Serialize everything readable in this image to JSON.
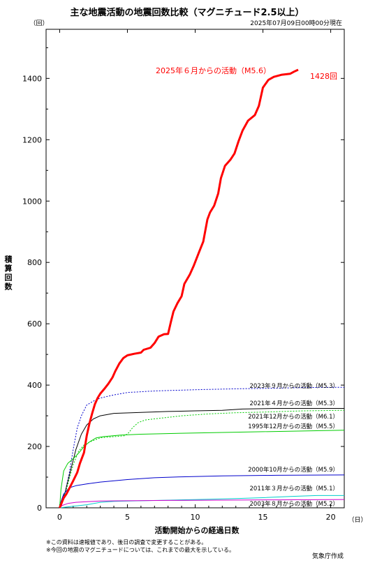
{
  "chart_data": {
    "type": "line",
    "title": "主な地震活動の地震回数比較（マグニチュード2.5以上）",
    "subtitle": "2025年07月09日00時00分現在",
    "xlabel": "活動開始からの経過日数",
    "x_unit": "（日）",
    "ylabel": "積算回数",
    "y_unit": "（回）",
    "xlim": [
      -1,
      21
    ],
    "ylim": [
      0,
      1560
    ],
    "x_ticks": [
      0,
      5,
      10,
      15,
      20
    ],
    "y_ticks": [
      0,
      200,
      400,
      600,
      800,
      1000,
      1200,
      1400
    ],
    "grid": false,
    "series": [
      {
        "name": "2025年６月からの活動（M5.6）",
        "color": "#ff0000",
        "style": "solid",
        "width": 3,
        "end_label": "1428回",
        "points": [
          [
            0,
            0
          ],
          [
            0.1,
            10
          ],
          [
            0.2,
            22
          ],
          [
            0.3,
            32
          ],
          [
            0.5,
            45
          ],
          [
            0.7,
            62
          ],
          [
            1.0,
            88
          ],
          [
            1.3,
            115
          ],
          [
            1.5,
            145
          ],
          [
            1.8,
            180
          ],
          [
            2.0,
            235
          ],
          [
            2.2,
            275
          ],
          [
            2.4,
            308
          ],
          [
            2.6,
            338
          ],
          [
            2.8,
            358
          ],
          [
            3.0,
            372
          ],
          [
            3.3,
            388
          ],
          [
            3.6,
            405
          ],
          [
            3.9,
            425
          ],
          [
            4.1,
            445
          ],
          [
            4.4,
            470
          ],
          [
            4.7,
            488
          ],
          [
            5.0,
            497
          ],
          [
            5.5,
            502
          ],
          [
            6.0,
            506
          ],
          [
            6.2,
            515
          ],
          [
            6.7,
            522
          ],
          [
            7.0,
            537
          ],
          [
            7.3,
            558
          ],
          [
            7.7,
            566
          ],
          [
            8.0,
            567
          ],
          [
            8.2,
            605
          ],
          [
            8.4,
            640
          ],
          [
            8.7,
            668
          ],
          [
            9.0,
            690
          ],
          [
            9.2,
            730
          ],
          [
            9.6,
            760
          ],
          [
            9.9,
            790
          ],
          [
            10.3,
            835
          ],
          [
            10.6,
            868
          ],
          [
            10.9,
            940
          ],
          [
            11.1,
            963
          ],
          [
            11.4,
            985
          ],
          [
            11.7,
            1025
          ],
          [
            11.9,
            1075
          ],
          [
            12.2,
            1115
          ],
          [
            12.6,
            1135
          ],
          [
            12.9,
            1155
          ],
          [
            13.2,
            1195
          ],
          [
            13.5,
            1230
          ],
          [
            13.9,
            1262
          ],
          [
            14.4,
            1280
          ],
          [
            14.7,
            1310
          ],
          [
            15.0,
            1370
          ],
          [
            15.4,
            1395
          ],
          [
            15.8,
            1405
          ],
          [
            16.4,
            1412
          ],
          [
            17.0,
            1415
          ],
          [
            17.3,
            1422
          ],
          [
            17.6,
            1428
          ]
        ]
      },
      {
        "name": "2023年９月からの活動（M5.3）",
        "color": "#0000cc",
        "style": "dotted",
        "width": 1,
        "points": [
          [
            0,
            0
          ],
          [
            0.3,
            30
          ],
          [
            0.7,
            110
          ],
          [
            1.0,
            190
          ],
          [
            1.3,
            260
          ],
          [
            1.6,
            300
          ],
          [
            2.0,
            335
          ],
          [
            2.5,
            348
          ],
          [
            3.0,
            358
          ],
          [
            4,
            368
          ],
          [
            5,
            376
          ],
          [
            7,
            381
          ],
          [
            10,
            385
          ],
          [
            13,
            388
          ],
          [
            16,
            390
          ],
          [
            18,
            392
          ],
          [
            21,
            393
          ]
        ]
      },
      {
        "name": "2021年４月からの活動（M5.3）",
        "color": "#000000",
        "style": "solid",
        "width": 1,
        "points": [
          [
            0,
            0
          ],
          [
            0.4,
            50
          ],
          [
            0.8,
            120
          ],
          [
            1.2,
            190
          ],
          [
            1.6,
            240
          ],
          [
            2.0,
            270
          ],
          [
            2.5,
            290
          ],
          [
            3.0,
            300
          ],
          [
            4,
            308
          ],
          [
            6,
            311
          ],
          [
            8,
            314
          ],
          [
            10,
            316
          ],
          [
            12,
            318
          ],
          [
            13.5,
            322
          ],
          [
            16,
            324
          ],
          [
            21,
            324
          ]
        ]
      },
      {
        "name": "2021年12月からの活動（M6.1）",
        "color": "#00cc00",
        "style": "dotted",
        "width": 1,
        "points": [
          [
            0,
            0
          ],
          [
            0.5,
            60
          ],
          [
            1.0,
            140
          ],
          [
            1.4,
            185
          ],
          [
            1.8,
            205
          ],
          [
            2.3,
            216
          ],
          [
            3.0,
            228
          ],
          [
            4.0,
            232
          ],
          [
            4.8,
            235
          ],
          [
            5.1,
            245
          ],
          [
            5.4,
            262
          ],
          [
            5.8,
            278
          ],
          [
            6.3,
            286
          ],
          [
            7,
            290
          ],
          [
            9,
            300
          ],
          [
            11,
            306
          ],
          [
            13,
            310
          ],
          [
            15,
            312
          ],
          [
            18,
            316
          ],
          [
            21,
            318
          ]
        ]
      },
      {
        "name": "1995年12月からの活動（M5.5）",
        "color": "#00cc00",
        "style": "solid",
        "width": 1,
        "points": [
          [
            0,
            0
          ],
          [
            0.1,
            60
          ],
          [
            0.3,
            120
          ],
          [
            0.6,
            145
          ],
          [
            1.0,
            160
          ],
          [
            1.4,
            178
          ],
          [
            1.8,
            200
          ],
          [
            2.2,
            215
          ],
          [
            2.7,
            228
          ],
          [
            3.2,
            232
          ],
          [
            4.5,
            237
          ],
          [
            6,
            240
          ],
          [
            10,
            244
          ],
          [
            15,
            248
          ],
          [
            21,
            253
          ]
        ]
      },
      {
        "name": "2000年10月からの活動（M5.9）",
        "color": "#0000cc",
        "style": "solid",
        "width": 1,
        "points": [
          [
            0,
            0
          ],
          [
            0.1,
            20
          ],
          [
            0.3,
            45
          ],
          [
            0.7,
            65
          ],
          [
            1.2,
            72
          ],
          [
            2.0,
            78
          ],
          [
            3.0,
            84
          ],
          [
            5.0,
            92
          ],
          [
            7,
            98
          ],
          [
            9,
            101
          ],
          [
            12,
            104
          ],
          [
            16,
            106
          ],
          [
            21,
            107
          ]
        ]
      },
      {
        "name": "2011年３月からの活動（M5.1）",
        "color": "#00cccc",
        "style": "solid",
        "width": 1,
        "points": [
          [
            0,
            0
          ],
          [
            1,
            5
          ],
          [
            2,
            10
          ],
          [
            3,
            18
          ],
          [
            4,
            21
          ],
          [
            6,
            23
          ],
          [
            9,
            26
          ],
          [
            11,
            28
          ],
          [
            13,
            30
          ],
          [
            15,
            33
          ],
          [
            17,
            37
          ],
          [
            19,
            40
          ],
          [
            21,
            40
          ]
        ]
      },
      {
        "name": "2003年８月からの活動（M5.2）",
        "color": "#cc00cc",
        "style": "solid",
        "width": 1,
        "points": [
          [
            0,
            0
          ],
          [
            0.2,
            8
          ],
          [
            0.6,
            14
          ],
          [
            1.2,
            18
          ],
          [
            2,
            20
          ],
          [
            3,
            22
          ],
          [
            5,
            23
          ],
          [
            8,
            24
          ],
          [
            12,
            25
          ],
          [
            16,
            26
          ],
          [
            21,
            27
          ]
        ]
      }
    ],
    "footnotes": [
      "※この資料は速報値であり、後日の調査で変更することがある。",
      "※今回の地震のマグニチュードについては、これまでの最大を示している。"
    ],
    "credit": "気象庁作成"
  }
}
